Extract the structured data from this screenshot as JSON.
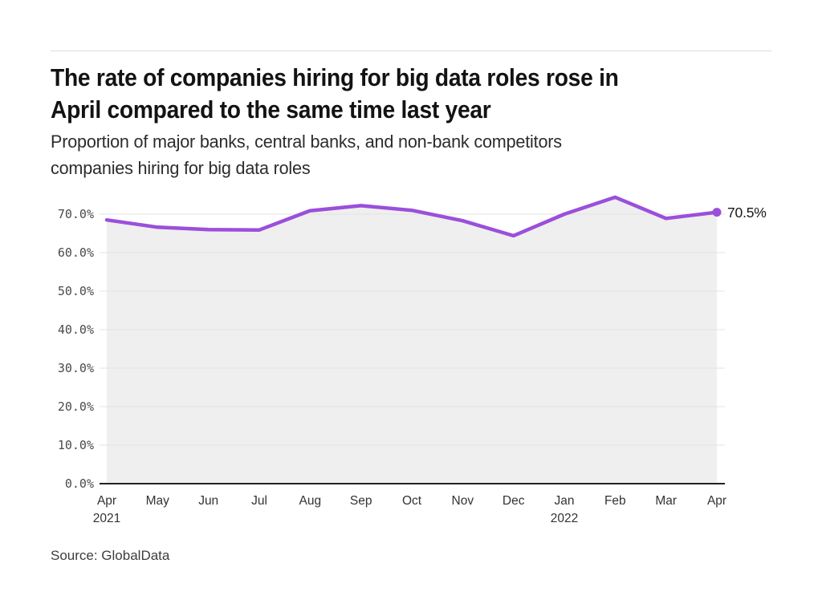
{
  "header": {
    "title_line1": "The rate of companies hiring for big data roles rose in",
    "title_line2": "April compared to the same time last year",
    "subtitle_line1": "Proportion of major banks, central banks, and non-bank competitors",
    "subtitle_line2": "companies hiring for big data roles"
  },
  "footer": {
    "source": "Source: GlobalData"
  },
  "chart_data": {
    "type": "line",
    "title": "The rate of companies hiring for big data roles rose in April compared to the same time last year",
    "subtitle": "Proportion of major banks, central banks, and non-bank competitors companies hiring for big data roles",
    "x": [
      "Apr",
      "May",
      "Jun",
      "Jul",
      "Aug",
      "Sep",
      "Oct",
      "Nov",
      "Dec",
      "Jan",
      "Feb",
      "Mar",
      "Apr"
    ],
    "x_year_labels": [
      {
        "index": 0,
        "label": "2021"
      },
      {
        "index": 9,
        "label": "2022"
      }
    ],
    "values": [
      68.5,
      66.6,
      66.0,
      65.9,
      70.9,
      72.2,
      71.0,
      68.3,
      64.4,
      70.0,
      74.4,
      68.9,
      70.5
    ],
    "end_label": "70.5%",
    "ytick_values": [
      0,
      10,
      20,
      30,
      40,
      50,
      60,
      70
    ],
    "ytick_labels": [
      "0.0%",
      "10.0%",
      "20.0%",
      "30.0%",
      "40.0%",
      "50.0%",
      "60.0%",
      "70.0%"
    ],
    "ylim": [
      0,
      76
    ],
    "grid": "horizontal",
    "legend": "none",
    "colors": {
      "line": "#9b4fdb",
      "marker": "#9b4fdb",
      "area_fill": "#efefef",
      "gridline": "#e3e3e3",
      "axis_line": "#222222"
    }
  }
}
